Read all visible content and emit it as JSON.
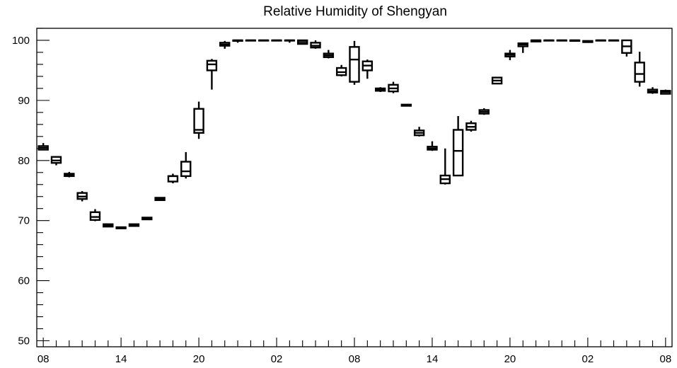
{
  "chart_data": {
    "type": "box",
    "title": "Relative Humidity of Shengyan",
    "xlabel": "",
    "ylabel": "",
    "ylim": [
      49,
      102
    ],
    "y_ticks": [
      50,
      60,
      70,
      80,
      90,
      100
    ],
    "x_tick_labels": [
      "08",
      "14",
      "20",
      "02",
      "08",
      "14",
      "20",
      "02",
      "08"
    ],
    "x_tick_hours": [
      0,
      6,
      12,
      18,
      24,
      30,
      36,
      42,
      48
    ],
    "xlim": [
      -0.5,
      48.5
    ],
    "grid": false,
    "boxes": [
      {
        "hour": 0,
        "min": 81.7,
        "q1": 81.8,
        "median": 82.1,
        "q3": 82.4,
        "max": 82.9
      },
      {
        "hour": 1,
        "min": 79.2,
        "q1": 79.6,
        "median": 80.0,
        "q3": 80.6,
        "max": 80.7
      },
      {
        "hour": 2,
        "min": 77.2,
        "q1": 77.4,
        "median": 77.6,
        "q3": 77.8,
        "max": 78.1
      },
      {
        "hour": 3,
        "min": 73.2,
        "q1": 73.6,
        "median": 74.0,
        "q3": 74.6,
        "max": 74.9
      },
      {
        "hour": 4,
        "min": 69.9,
        "q1": 70.1,
        "median": 70.6,
        "q3": 71.4,
        "max": 71.9
      },
      {
        "hour": 5,
        "min": 68.9,
        "q1": 69.0,
        "median": 69.2,
        "q3": 69.4,
        "max": 69.5
      },
      {
        "hour": 6,
        "min": 68.6,
        "q1": 68.7,
        "median": 68.8,
        "q3": 68.9,
        "max": 69.0
      },
      {
        "hour": 7,
        "min": 69.0,
        "q1": 69.1,
        "median": 69.3,
        "q3": 69.4,
        "max": 69.5
      },
      {
        "hour": 8,
        "min": 70.1,
        "q1": 70.2,
        "median": 70.3,
        "q3": 70.5,
        "max": 70.6
      },
      {
        "hour": 9,
        "min": 73.3,
        "q1": 73.4,
        "median": 73.6,
        "q3": 73.8,
        "max": 73.9
      },
      {
        "hour": 10,
        "min": 76.2,
        "q1": 76.5,
        "median": 77.4,
        "q3": 77.4,
        "max": 77.8
      },
      {
        "hour": 11,
        "min": 77.0,
        "q1": 77.4,
        "median": 78.2,
        "q3": 79.8,
        "max": 81.4
      },
      {
        "hour": 12,
        "min": 83.6,
        "q1": 84.6,
        "median": 85.1,
        "q3": 88.6,
        "max": 89.8
      },
      {
        "hour": 13,
        "min": 91.8,
        "q1": 95.0,
        "median": 96.0,
        "q3": 96.6,
        "max": 96.9
      },
      {
        "hour": 14,
        "min": 98.6,
        "q1": 99.1,
        "median": 99.3,
        "q3": 99.6,
        "max": 99.9
      },
      {
        "hour": 15,
        "min": 99.6,
        "q1": 99.9,
        "median": 100.0,
        "q3": 100.0,
        "max": 100.0
      },
      {
        "hour": 16,
        "min": 100.0,
        "q1": 100.0,
        "median": 100.0,
        "q3": 100.0,
        "max": 100.0
      },
      {
        "hour": 17,
        "min": 100.0,
        "q1": 100.0,
        "median": 100.0,
        "q3": 100.0,
        "max": 100.0
      },
      {
        "hour": 18,
        "min": 100.0,
        "q1": 100.0,
        "median": 100.0,
        "q3": 100.0,
        "max": 100.0
      },
      {
        "hour": 19,
        "min": 99.6,
        "q1": 100.0,
        "median": 100.0,
        "q3": 100.0,
        "max": 100.0
      },
      {
        "hour": 20,
        "min": 99.3,
        "q1": 99.4,
        "median": 99.7,
        "q3": 100.0,
        "max": 100.0
      },
      {
        "hour": 21,
        "min": 98.6,
        "q1": 98.8,
        "median": 99.1,
        "q3": 99.6,
        "max": 100.0
      },
      {
        "hour": 22,
        "min": 97.0,
        "q1": 97.2,
        "median": 97.5,
        "q3": 97.8,
        "max": 98.4
      },
      {
        "hour": 23,
        "min": 94.0,
        "q1": 94.2,
        "median": 94.7,
        "q3": 95.4,
        "max": 95.9
      },
      {
        "hour": 24,
        "min": 92.6,
        "q1": 93.1,
        "median": 96.8,
        "q3": 98.9,
        "max": 99.9
      },
      {
        "hour": 25,
        "min": 93.6,
        "q1": 95.0,
        "median": 95.8,
        "q3": 96.5,
        "max": 96.8
      },
      {
        "hour": 26,
        "min": 91.4,
        "q1": 91.6,
        "median": 91.8,
        "q3": 92.0,
        "max": 92.2
      },
      {
        "hour": 27,
        "min": 91.2,
        "q1": 91.5,
        "median": 92.0,
        "q3": 92.6,
        "max": 93.1
      },
      {
        "hour": 28,
        "min": 89.0,
        "q1": 89.1,
        "median": 89.2,
        "q3": 89.3,
        "max": 89.4
      },
      {
        "hour": 29,
        "min": 84.0,
        "q1": 84.2,
        "median": 84.6,
        "q3": 85.0,
        "max": 85.6
      },
      {
        "hour": 30,
        "min": 81.6,
        "q1": 81.8,
        "median": 82.0,
        "q3": 82.3,
        "max": 83.2
      },
      {
        "hour": 31,
        "min": 76.0,
        "q1": 76.2,
        "median": 76.9,
        "q3": 77.5,
        "max": 82.0
      },
      {
        "hour": 32,
        "min": 77.4,
        "q1": 77.5,
        "median": 81.6,
        "q3": 85.1,
        "max": 87.4
      },
      {
        "hour": 33,
        "min": 84.8,
        "q1": 85.1,
        "median": 85.6,
        "q3": 86.2,
        "max": 86.6
      },
      {
        "hour": 34,
        "min": 87.6,
        "q1": 87.8,
        "median": 88.1,
        "q3": 88.4,
        "max": 88.7
      },
      {
        "hour": 35,
        "min": 92.7,
        "q1": 92.8,
        "median": 93.3,
        "q3": 93.8,
        "max": 93.9
      },
      {
        "hour": 36,
        "min": 96.7,
        "q1": 97.3,
        "median": 97.6,
        "q3": 97.8,
        "max": 98.4
      },
      {
        "hour": 37,
        "min": 97.9,
        "q1": 99.0,
        "median": 99.3,
        "q3": 99.5,
        "max": 99.6
      },
      {
        "hour": 38,
        "min": 99.7,
        "q1": 99.8,
        "median": 100.0,
        "q3": 100.0,
        "max": 100.0
      },
      {
        "hour": 39,
        "min": 100.0,
        "q1": 100.0,
        "median": 100.0,
        "q3": 100.0,
        "max": 100.0
      },
      {
        "hour": 40,
        "min": 100.0,
        "q1": 100.0,
        "median": 100.0,
        "q3": 100.0,
        "max": 100.0
      },
      {
        "hour": 41,
        "min": 99.8,
        "q1": 99.9,
        "median": 100.0,
        "q3": 100.0,
        "max": 100.0
      },
      {
        "hour": 42,
        "min": 99.6,
        "q1": 99.7,
        "median": 99.8,
        "q3": 99.9,
        "max": 100.0
      },
      {
        "hour": 43,
        "min": 100.0,
        "q1": 100.0,
        "median": 100.0,
        "q3": 100.0,
        "max": 100.0
      },
      {
        "hour": 44,
        "min": 100.0,
        "q1": 100.0,
        "median": 100.0,
        "q3": 100.0,
        "max": 100.0
      },
      {
        "hour": 45,
        "min": 97.3,
        "q1": 97.9,
        "median": 99.0,
        "q3": 100.0,
        "max": 100.0
      },
      {
        "hour": 46,
        "min": 92.3,
        "q1": 93.1,
        "median": 94.4,
        "q3": 96.3,
        "max": 98.1
      },
      {
        "hour": 47,
        "min": 91.1,
        "q1": 91.3,
        "median": 91.5,
        "q3": 91.8,
        "max": 92.2
      },
      {
        "hour": 48,
        "min": 91.0,
        "q1": 91.1,
        "median": 91.4,
        "q3": 91.6,
        "max": 91.8
      }
    ]
  }
}
